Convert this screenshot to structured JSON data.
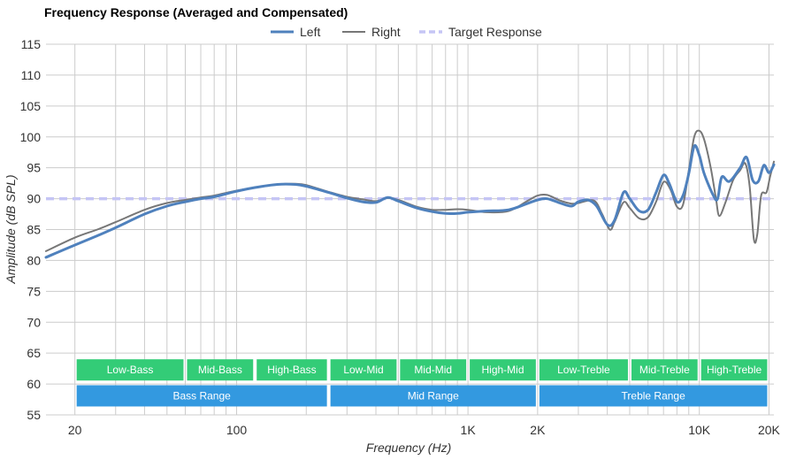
{
  "chart_data": {
    "type": "line",
    "title": "Frequency Response (Averaged and Compensated)",
    "xlabel": "Frequency (Hz)",
    "ylabel": "Amplitude (dB SPL)",
    "x_scale": "log",
    "xlim": [
      15,
      21000
    ],
    "ylim": [
      55,
      115
    ],
    "y_ticks": [
      55,
      60,
      65,
      70,
      75,
      80,
      85,
      90,
      95,
      100,
      105,
      110,
      115
    ],
    "x_ticks": [
      {
        "value": 20,
        "label": "20"
      },
      {
        "value": 100,
        "label": "100"
      },
      {
        "value": 1000,
        "label": "1K"
      },
      {
        "value": 2000,
        "label": "2K"
      },
      {
        "value": 10000,
        "label": "10K"
      },
      {
        "value": 20000,
        "label": "20K"
      }
    ],
    "grid": true,
    "legend_position": "top",
    "series": [
      {
        "name": "Left",
        "color": "#4f81bd",
        "style": "solid",
        "points": [
          [
            15,
            80.5
          ],
          [
            20,
            82.5
          ],
          [
            25,
            84
          ],
          [
            30,
            85.3
          ],
          [
            40,
            87.5
          ],
          [
            50,
            88.8
          ],
          [
            60,
            89.5
          ],
          [
            70,
            90
          ],
          [
            80,
            90.3
          ],
          [
            100,
            91.2
          ],
          [
            120,
            91.8
          ],
          [
            150,
            92.3
          ],
          [
            180,
            92.3
          ],
          [
            200,
            92
          ],
          [
            250,
            91
          ],
          [
            300,
            90.1
          ],
          [
            350,
            89.5
          ],
          [
            400,
            89.4
          ],
          [
            450,
            90.2
          ],
          [
            500,
            89.6
          ],
          [
            600,
            88.5
          ],
          [
            700,
            87.9
          ],
          [
            800,
            87.6
          ],
          [
            900,
            87.6
          ],
          [
            1000,
            87.8
          ],
          [
            1200,
            88
          ],
          [
            1500,
            88.2
          ],
          [
            1800,
            89.2
          ],
          [
            2000,
            89.8
          ],
          [
            2200,
            90
          ],
          [
            2500,
            89.3
          ],
          [
            2800,
            88.8
          ],
          [
            3000,
            89.5
          ],
          [
            3300,
            89.8
          ],
          [
            3600,
            88.8
          ],
          [
            4000,
            85.8
          ],
          [
            4300,
            86.5
          ],
          [
            4700,
            91
          ],
          [
            5000,
            90
          ],
          [
            5500,
            88
          ],
          [
            6000,
            88.2
          ],
          [
            6500,
            91
          ],
          [
            7000,
            93.8
          ],
          [
            7400,
            92.5
          ],
          [
            8000,
            89.5
          ],
          [
            8500,
            90.5
          ],
          [
            9000,
            94
          ],
          [
            9500,
            98.5
          ],
          [
            10000,
            97
          ],
          [
            10500,
            94
          ],
          [
            11500,
            90.5
          ],
          [
            12000,
            90
          ],
          [
            12500,
            93.5
          ],
          [
            13500,
            92.8
          ],
          [
            15000,
            95
          ],
          [
            16000,
            96.7
          ],
          [
            17000,
            93
          ],
          [
            18000,
            92.8
          ],
          [
            19000,
            95.4
          ],
          [
            20000,
            94.2
          ],
          [
            21000,
            95.5
          ]
        ]
      },
      {
        "name": "Right",
        "color": "#777777",
        "style": "solid",
        "points": [
          [
            15,
            81.5
          ],
          [
            20,
            83.7
          ],
          [
            25,
            85
          ],
          [
            30,
            86.2
          ],
          [
            40,
            88.2
          ],
          [
            50,
            89.3
          ],
          [
            60,
            89.8
          ],
          [
            70,
            90.2
          ],
          [
            80,
            90.5
          ],
          [
            100,
            91.3
          ],
          [
            120,
            91.8
          ],
          [
            150,
            92.3
          ],
          [
            180,
            92.4
          ],
          [
            200,
            92.2
          ],
          [
            250,
            91.1
          ],
          [
            300,
            90.3
          ],
          [
            350,
            89.9
          ],
          [
            400,
            89.6
          ],
          [
            450,
            90.1
          ],
          [
            500,
            89.8
          ],
          [
            600,
            88.7
          ],
          [
            700,
            88.2
          ],
          [
            800,
            88.2
          ],
          [
            900,
            88.3
          ],
          [
            1000,
            88.2
          ],
          [
            1200,
            87.8
          ],
          [
            1500,
            88
          ],
          [
            1800,
            89.6
          ],
          [
            2000,
            90.5
          ],
          [
            2200,
            90.6
          ],
          [
            2500,
            89.7
          ],
          [
            2800,
            89.2
          ],
          [
            3000,
            89.3
          ],
          [
            3500,
            89.7
          ],
          [
            3800,
            87.5
          ],
          [
            4100,
            85
          ],
          [
            4300,
            86.2
          ],
          [
            4700,
            89.4
          ],
          [
            5000,
            88.5
          ],
          [
            5500,
            86.8
          ],
          [
            6000,
            87
          ],
          [
            6500,
            89.5
          ],
          [
            7000,
            92.7
          ],
          [
            7500,
            91.5
          ],
          [
            8000,
            88.7
          ],
          [
            8500,
            89
          ],
          [
            9000,
            94.5
          ],
          [
            9500,
            100
          ],
          [
            10000,
            101
          ],
          [
            10500,
            99.5
          ],
          [
            11200,
            95
          ],
          [
            11800,
            90
          ],
          [
            12200,
            87.2
          ],
          [
            13000,
            89.5
          ],
          [
            14000,
            93
          ],
          [
            15000,
            94.6
          ],
          [
            15800,
            95.7
          ],
          [
            16500,
            92
          ],
          [
            17200,
            83.5
          ],
          [
            17800,
            84.2
          ],
          [
            18500,
            90.5
          ],
          [
            19500,
            91
          ],
          [
            20200,
            93.5
          ],
          [
            21000,
            96
          ]
        ]
      },
      {
        "name": "Target Response",
        "color": "#c5c5f5",
        "style": "dashed",
        "points": [
          [
            15,
            90
          ],
          [
            21000,
            90
          ]
        ]
      }
    ],
    "bands": [
      {
        "label": "Low-Bass",
        "from": 20,
        "to": 60,
        "row": 0,
        "color": "#33cc77"
      },
      {
        "label": "Mid-Bass",
        "from": 60,
        "to": 120,
        "row": 0,
        "color": "#33cc77"
      },
      {
        "label": "High-Bass",
        "from": 120,
        "to": 250,
        "row": 0,
        "color": "#33cc77"
      },
      {
        "label": "Low-Mid",
        "from": 250,
        "to": 500,
        "row": 0,
        "color": "#33cc77"
      },
      {
        "label": "Mid-Mid",
        "from": 500,
        "to": 1000,
        "row": 0,
        "color": "#33cc77"
      },
      {
        "label": "High-Mid",
        "from": 1000,
        "to": 2000,
        "row": 0,
        "color": "#33cc77"
      },
      {
        "label": "Low-Treble",
        "from": 2000,
        "to": 5000,
        "row": 0,
        "color": "#33cc77"
      },
      {
        "label": "Mid-Treble",
        "from": 5000,
        "to": 10000,
        "row": 0,
        "color": "#33cc77"
      },
      {
        "label": "High-Treble",
        "from": 10000,
        "to": 20000,
        "row": 0,
        "color": "#33cc77"
      },
      {
        "label": "Bass Range",
        "from": 20,
        "to": 250,
        "row": 1,
        "color": "#3399e0"
      },
      {
        "label": "Mid Range",
        "from": 250,
        "to": 2000,
        "row": 1,
        "color": "#3399e0"
      },
      {
        "label": "Treble Range",
        "from": 2000,
        "to": 20000,
        "row": 1,
        "color": "#3399e0"
      }
    ]
  }
}
